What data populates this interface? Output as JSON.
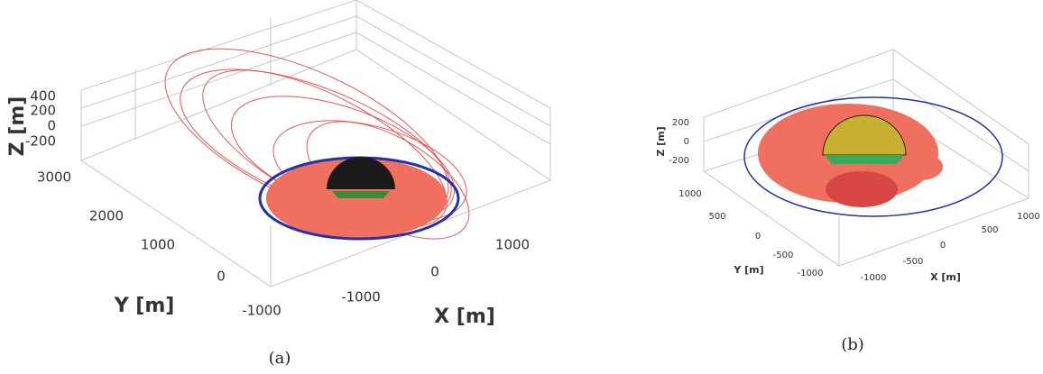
{
  "panels": [
    {
      "caption": "(a)",
      "x_label": "X [m]",
      "y_label": "Y [m]",
      "z_label": "Z [m]",
      "x_ticks": [
        "-1000",
        "0",
        "1000"
      ],
      "y_ticks": [
        "3000",
        "2000",
        "1000",
        "0",
        "-1000"
      ],
      "z_ticks": [
        "400",
        "200",
        "0",
        "-200"
      ]
    },
    {
      "caption": "(b)",
      "x_label": "X [m]",
      "y_label": "Y [m]",
      "z_label": "Z [m]",
      "x_ticks": [
        "-1000",
        "-500",
        "0",
        "500",
        "1000"
      ],
      "y_ticks": [
        "1000",
        "500",
        "0",
        "-500",
        "-1000"
      ],
      "z_ticks": [
        "200",
        "0",
        "-200"
      ]
    }
  ]
}
